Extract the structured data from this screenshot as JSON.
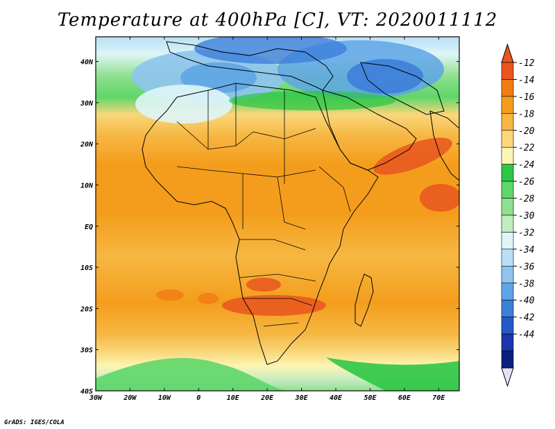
{
  "title": "Temperature at 400hPa [C], VT: 2020011112",
  "credit": "GrADS: IGES/COLA",
  "map": {
    "variable": "Temperature at 400hPa",
    "units": "C",
    "valid_time": "2020011112",
    "lon_range": [
      -30,
      76
    ],
    "lat_range": [
      -40,
      46
    ],
    "x_ticks": [
      "30W",
      "20W",
      "10W",
      "0",
      "10E",
      "20E",
      "30E",
      "40E",
      "50E",
      "60E",
      "70E"
    ],
    "y_ticks": [
      "40N",
      "30N",
      "20N",
      "10N",
      "EQ",
      "10S",
      "20S",
      "30S",
      "40S"
    ]
  },
  "colorbar": {
    "levels": [
      "-12",
      "-14",
      "-16",
      "-18",
      "-20",
      "-22",
      "-24",
      "-26",
      "-28",
      "-30",
      "-32",
      "-34",
      "-36",
      "-38",
      "-40",
      "-42",
      "-44"
    ],
    "colors": [
      "#e8561e",
      "#f07d13",
      "#f49d1c",
      "#f6b742",
      "#f9d77a",
      "#fdf5b4",
      "#2ec645",
      "#5fd66a",
      "#8fe08e",
      "#c2ecc0",
      "#dff5f8",
      "#b9dff5",
      "#8ec4ee",
      "#5ea5e6",
      "#3d80d9",
      "#2659c7",
      "#1b36aa",
      "#0b1f7d"
    ],
    "under_color": "#e6e0f7",
    "over_color": "#e8561e"
  }
}
